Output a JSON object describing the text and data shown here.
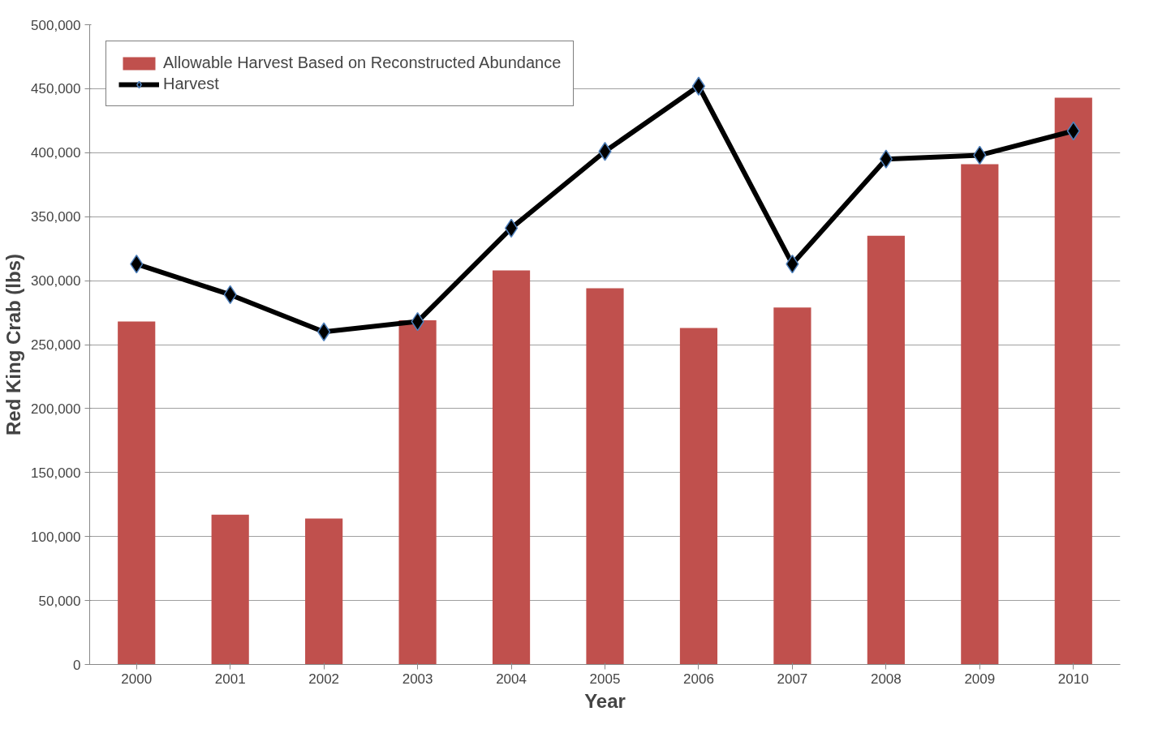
{
  "chart_data": {
    "type": "bar",
    "xlabel": "Year",
    "ylabel": "Red King Crab (lbs)",
    "categories": [
      "2000",
      "2001",
      "2002",
      "2003",
      "2004",
      "2005",
      "2006",
      "2007",
      "2008",
      "2009",
      "2010"
    ],
    "series": [
      {
        "name": "Allowable Harvest Based on Reconstructed Abundance",
        "color": "#c0504d",
        "values": [
          268000,
          117000,
          114000,
          269000,
          308000,
          294000,
          263000,
          279000,
          335000,
          391000,
          443000
        ]
      },
      {
        "name": "Harvest",
        "type": "line",
        "color": "#000000",
        "marker": "diamond",
        "values": [
          313000,
          289000,
          260000,
          268000,
          341000,
          401000,
          452000,
          313000,
          395000,
          398000,
          417000
        ]
      }
    ],
    "ylim": [
      0,
      500000
    ],
    "yticks": [
      {
        "value": 0,
        "label": "0"
      },
      {
        "value": 50000,
        "label": "50,000"
      },
      {
        "value": 100000,
        "label": "100,000"
      },
      {
        "value": 150000,
        "label": "150,000"
      },
      {
        "value": 200000,
        "label": "200,000"
      },
      {
        "value": 250000,
        "label": "250,000"
      },
      {
        "value": 300000,
        "label": "300,000"
      },
      {
        "value": 350000,
        "label": "350,000"
      },
      {
        "value": 400000,
        "label": "400,000"
      },
      {
        "value": 450000,
        "label": "450,000"
      },
      {
        "value": 500000,
        "label": "500,000"
      }
    ],
    "grid": "y",
    "legend": "top left"
  }
}
